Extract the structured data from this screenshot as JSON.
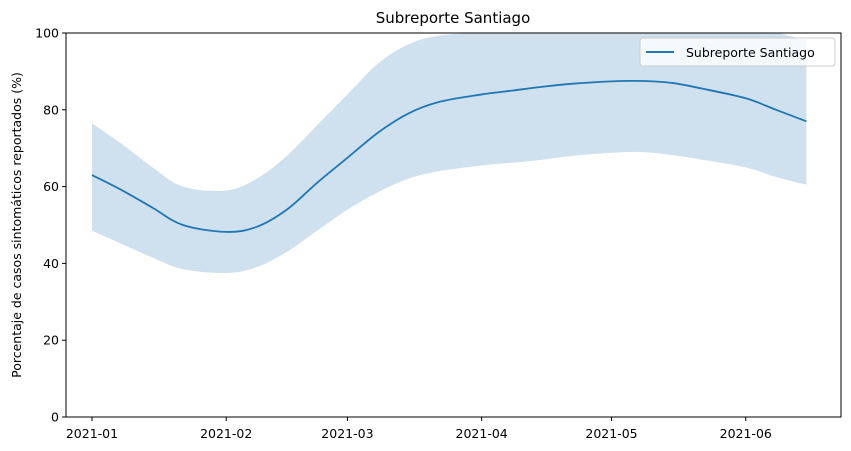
{
  "chart_data": {
    "type": "line",
    "title": "Subreporte Santiago",
    "xlabel": "",
    "ylabel": "Porcentaje de casos sintomáticos reportados (%)",
    "ylim": [
      0,
      100
    ],
    "y_ticks": [
      0,
      20,
      40,
      60,
      80,
      100
    ],
    "x_ticks": [
      "2021-01",
      "2021-02",
      "2021-03",
      "2021-04",
      "2021-05",
      "2021-06"
    ],
    "x_range": [
      "2020-12-26",
      "2021-06-23"
    ],
    "legend_position": "top-right",
    "grid": false,
    "series": [
      {
        "name": "Subreporte Santiago",
        "color": "#1f77b4",
        "band_color": "#cfe0ee",
        "x": [
          "2021-01-01",
          "2021-01-08",
          "2021-01-15",
          "2021-01-22",
          "2021-02-01",
          "2021-02-08",
          "2021-02-15",
          "2021-02-22",
          "2021-03-01",
          "2021-03-08",
          "2021-03-15",
          "2021-03-22",
          "2021-04-01",
          "2021-04-08",
          "2021-04-15",
          "2021-04-22",
          "2021-05-01",
          "2021-05-08",
          "2021-05-15",
          "2021-05-22",
          "2021-06-01",
          "2021-06-08",
          "2021-06-15"
        ],
        "y": [
          63,
          59,
          54.5,
          50,
          48.2,
          49.5,
          54,
          61,
          67.5,
          74,
          79,
          82,
          84,
          85,
          86,
          86.8,
          87.4,
          87.5,
          87,
          85.5,
          83,
          80,
          77
        ],
        "lower": [
          48.5,
          45,
          41.5,
          38.5,
          37.5,
          39,
          43,
          48.5,
          54,
          58.5,
          62,
          64,
          65.5,
          66.2,
          67,
          68,
          68.8,
          69,
          68.2,
          67,
          65,
          62.5,
          60.5
        ],
        "upper": [
          76.5,
          71,
          65,
          60,
          59,
          62,
          68,
          76,
          84,
          92,
          97,
          99.3,
          100,
          100,
          100,
          100,
          100,
          100,
          100,
          100,
          100,
          100,
          98
        ]
      }
    ]
  }
}
